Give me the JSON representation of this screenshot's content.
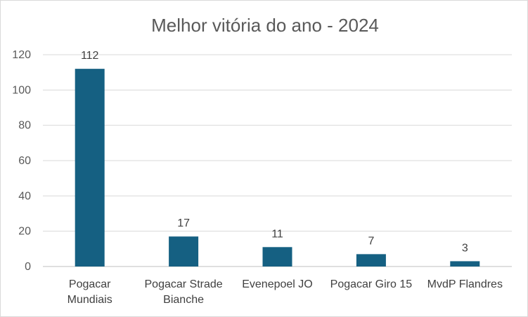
{
  "chart_data": {
    "type": "bar",
    "title": "Melhor vitória do ano - 2024",
    "categories": [
      "Pogacar Mundiais",
      "Pogacar Strade Bianche",
      "Evenepoel JO",
      "Pogacar Giro 15",
      "MvdP Flandres"
    ],
    "values": [
      112,
      17,
      11,
      7,
      3
    ],
    "data_labels": [
      "112",
      "17",
      "11",
      "7",
      "3"
    ],
    "xlabel": "",
    "ylabel": "",
    "ylim": [
      0,
      120
    ],
    "yticks": [
      "0",
      "20",
      "40",
      "60",
      "80",
      "100",
      "120"
    ],
    "grid": true,
    "legend": "none",
    "bar_color": "#156082"
  }
}
